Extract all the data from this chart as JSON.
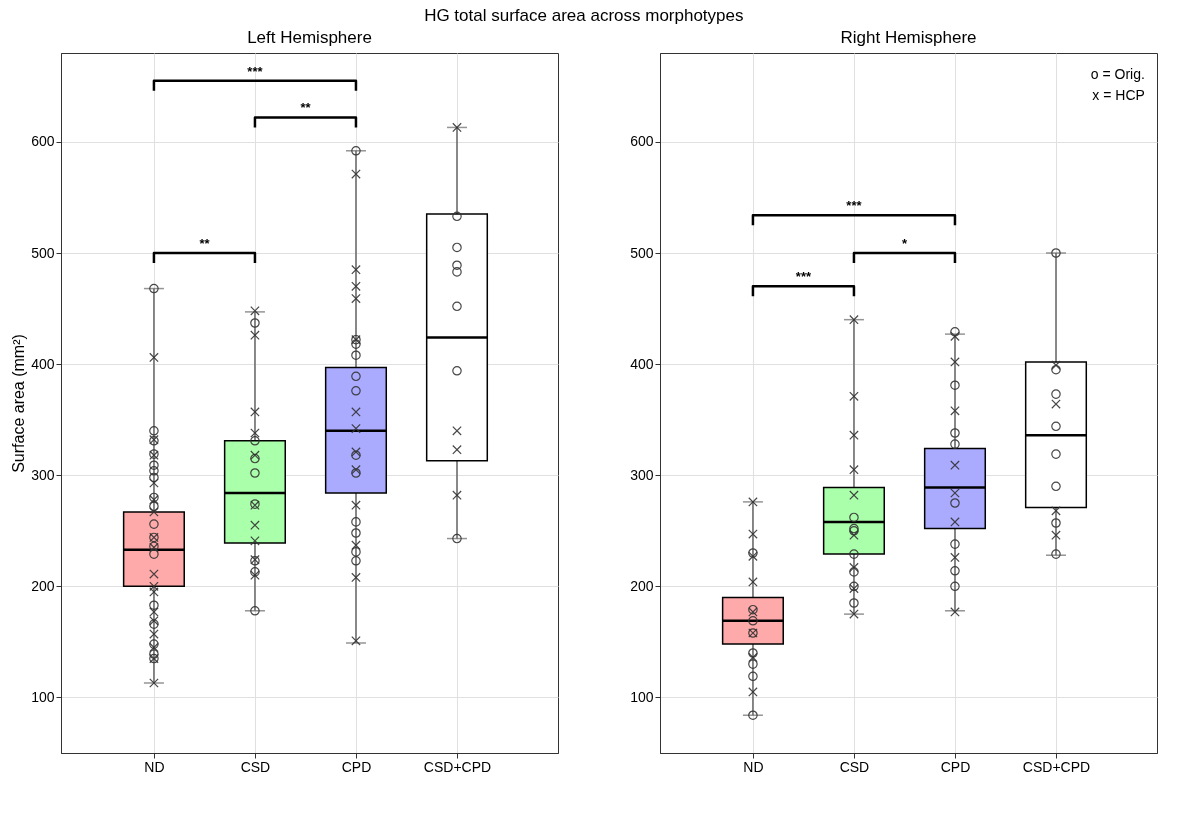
{
  "chart_data": [
    {
      "type": "box",
      "title": "Left Hemisphere",
      "ylabel": "Surface area (mm²)",
      "categories": [
        "ND",
        "CSD",
        "CPD",
        "CSD+CPD"
      ],
      "boxes": [
        {
          "low": 113,
          "q1": 200,
          "median": 233,
          "q3": 267,
          "high": 468
        },
        {
          "low": 178,
          "q1": 239,
          "median": 284,
          "q3": 331,
          "high": 447
        },
        {
          "low": 149,
          "q1": 284,
          "median": 340,
          "q3": 397,
          "high": 592
        },
        {
          "low": 243,
          "q1": 313,
          "median": 424,
          "q3": 535,
          "high": 613
        }
      ],
      "colors": [
        "#ffaaaa",
        "#aaffaa",
        "#aaaaff",
        "#ffffff"
      ],
      "series": [
        {
          "type": "scatter",
          "marker": "circle",
          "color": "#333333",
          "x": [
            "ND",
            "ND",
            "ND",
            "ND",
            "ND",
            "ND",
            "ND",
            "ND",
            "ND",
            "ND",
            "ND",
            "ND",
            "ND",
            "ND",
            "ND",
            "ND",
            "ND",
            "ND",
            "CSD",
            "CSD",
            "CSD",
            "CSD",
            "CSD",
            "CSD",
            "CSD",
            "CSD",
            "CPD",
            "CPD",
            "CPD",
            "CPD",
            "CPD",
            "CPD",
            "CPD",
            "CPD",
            "CPD",
            "CPD",
            "CPD",
            "CPD",
            "CSD+CPD",
            "CSD+CPD",
            "CSD+CPD",
            "CSD+CPD",
            "CSD+CPD",
            "CSD+CPD",
            "CSD+CPD"
          ],
          "values": [
            468,
            340,
            331,
            319,
            309,
            304,
            298,
            280,
            272,
            256,
            244,
            236,
            229,
            183,
            166,
            148,
            139,
            135,
            437,
            331,
            315,
            302,
            274,
            223,
            213,
            178,
            592,
            422,
            418,
            408,
            389,
            376,
            318,
            302,
            258,
            248,
            231,
            223,
            533,
            505,
            489,
            483,
            452,
            394,
            243
          ]
        },
        {
          "type": "scatter",
          "marker": "cross",
          "color": "#333333",
          "x": [
            "ND",
            "ND",
            "ND",
            "ND",
            "ND",
            "ND",
            "ND",
            "ND",
            "ND",
            "ND",
            "ND",
            "ND",
            "ND",
            "ND",
            "ND",
            "ND",
            "ND",
            "CSD",
            "CSD",
            "CSD",
            "CSD",
            "CSD",
            "CSD",
            "CSD",
            "CSD",
            "CSD",
            "CSD",
            "CPD",
            "CPD",
            "CPD",
            "CPD",
            "CPD",
            "CPD",
            "CPD",
            "CPD",
            "CPD",
            "CPD",
            "CPD",
            "CPD",
            "CPD",
            "CSD+CPD",
            "CSD+CPD",
            "CSD+CPD",
            "CSD+CPD"
          ],
          "values": [
            406,
            332,
            318,
            293,
            278,
            267,
            244,
            235,
            211,
            200,
            195,
            177,
            169,
            157,
            145,
            135,
            113,
            448,
            426,
            357,
            338,
            318,
            273,
            255,
            241,
            224,
            210,
            571,
            485,
            470,
            459,
            422,
            357,
            342,
            321,
            305,
            273,
            237,
            208,
            151,
            613,
            340,
            323,
            282
          ]
        }
      ],
      "ylim": [
        50,
        680
      ],
      "yticks": [
        100,
        200,
        300,
        400,
        500,
        600
      ],
      "grid": true,
      "annotations": [
        "HG total surface area across morphotypes",
        "***",
        "**",
        "**"
      ]
    },
    {
      "type": "box",
      "title": "Right Hemisphere",
      "categories": [
        "ND",
        "CSD",
        "CPD",
        "CSD+CPD"
      ],
      "boxes": [
        {
          "low": 84,
          "q1": 148,
          "median": 169,
          "q3": 190,
          "high": 276
        },
        {
          "low": 175,
          "q1": 229,
          "median": 258,
          "q3": 289,
          "high": 440
        },
        {
          "low": 178,
          "q1": 252,
          "median": 289,
          "q3": 324,
          "high": 427
        },
        {
          "low": 228,
          "q1": 271,
          "median": 336,
          "q3": 402,
          "high": 500
        }
      ],
      "colors": [
        "#ffaaaa",
        "#aaffaa",
        "#aaaaff",
        "#ffffff"
      ],
      "series": [
        {
          "type": "scatter",
          "marker": "circle",
          "color": "#333333",
          "x": [
            "ND",
            "ND",
            "ND",
            "ND",
            "ND",
            "ND",
            "ND",
            "ND",
            "CSD",
            "CSD",
            "CSD",
            "CSD",
            "CSD",
            "CSD",
            "CSD",
            "CPD",
            "CPD",
            "CPD",
            "CPD",
            "CPD",
            "CPD",
            "CPD",
            "CPD",
            "CSD+CPD",
            "CSD+CPD",
            "CSD+CPD",
            "CSD+CPD",
            "CSD+CPD",
            "CSD+CPD",
            "CSD+CPD",
            "CSD+CPD"
          ],
          "values": [
            230,
            179,
            169,
            158,
            140,
            130,
            119,
            84,
            262,
            252,
            250,
            229,
            213,
            200,
            185,
            429,
            381,
            338,
            328,
            275,
            238,
            214,
            200,
            500,
            395,
            373,
            344,
            319,
            290,
            257,
            229
          ]
        },
        {
          "type": "scatter",
          "marker": "cross",
          "color": "#333333",
          "x": [
            "ND",
            "ND",
            "ND",
            "ND",
            "ND",
            "ND",
            "ND",
            "ND",
            "CSD",
            "CSD",
            "CSD",
            "CSD",
            "CSD",
            "CSD",
            "CSD",
            "CSD",
            "CSD",
            "CPD",
            "CPD",
            "CPD",
            "CPD",
            "CPD",
            "CPD",
            "CPD",
            "CPD",
            "CSD+CPD",
            "CSD+CPD",
            "CSD+CPD",
            "CSD+CPD"
          ],
          "values": [
            276,
            247,
            227,
            204,
            177,
            158,
            136,
            105,
            440,
            371,
            336,
            305,
            282,
            246,
            217,
            198,
            175,
            425,
            402,
            358,
            309,
            284,
            258,
            226,
            177,
            399,
            364,
            268,
            246
          ]
        }
      ],
      "ylim": [
        50,
        680
      ],
      "yticks": [
        100,
        200,
        300,
        400,
        500,
        600
      ],
      "grid": true,
      "annotations": [
        "o = Orig.",
        "x = HCP",
        "***",
        "*",
        "***"
      ]
    }
  ]
}
